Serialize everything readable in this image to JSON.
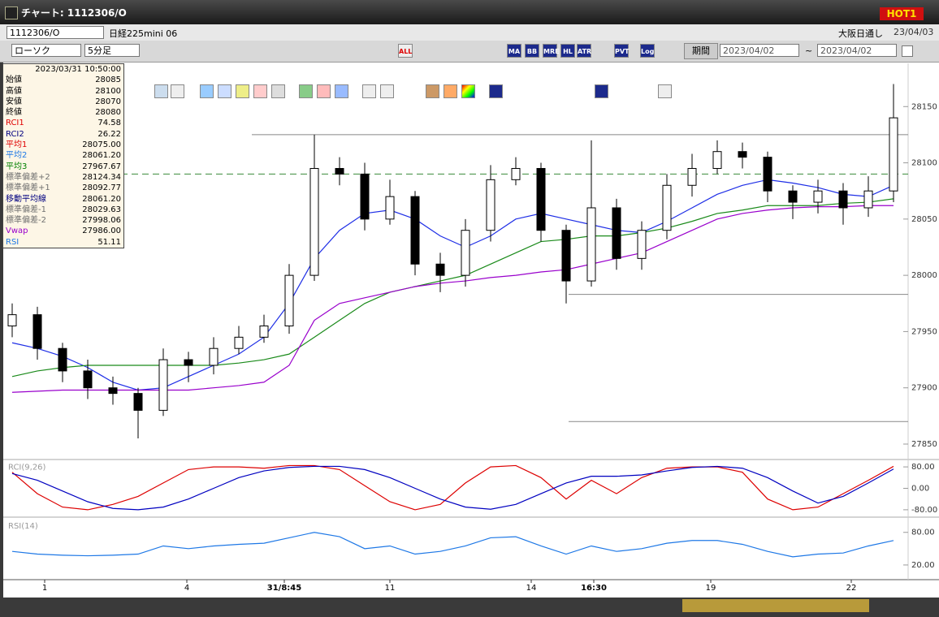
{
  "window": {
    "title": "チャート: 1112306/O",
    "badge": "HOT1"
  },
  "toolbar": {
    "symbol_code": "1112306/O",
    "symbol_name": "日経225mini 06",
    "session": "大阪日通し",
    "date": "23/04/03",
    "chart_style": "ローソク",
    "interval": "5分足",
    "buttons": [
      "ALL",
      "MA",
      "BB",
      "MRE",
      "HL",
      "ATR",
      "PVT",
      "Log"
    ],
    "period_label": "期間",
    "from": "2023/04/02",
    "tilde": "~",
    "to": "2023/04/02"
  },
  "info_panel": {
    "timestamp": "2023/03/31  10:50:00",
    "rows": [
      {
        "label": "始値",
        "value": "28085",
        "color": "#000000"
      },
      {
        "label": "高値",
        "value": "28100",
        "color": "#000000"
      },
      {
        "label": "安値",
        "value": "28070",
        "color": "#000000"
      },
      {
        "label": "終値",
        "value": "28080",
        "color": "#000000"
      },
      {
        "label": "RCI1",
        "value": "74.58",
        "color": "#e00000"
      },
      {
        "label": "RCI2",
        "value": "26.22",
        "color": "#000080"
      },
      {
        "label": "平均1",
        "value": "28075.00",
        "color": "#e00000"
      },
      {
        "label": "平均2",
        "value": "28061.20",
        "color": "#1e78e6"
      },
      {
        "label": "平均3",
        "value": "27967.67",
        "color": "#008000"
      },
      {
        "label": "標準偏差+2",
        "value": "28124.34",
        "color": "#707070"
      },
      {
        "label": "標準偏差+1",
        "value": "28092.77",
        "color": "#707070"
      },
      {
        "label": "移動平均線",
        "value": "28061.20",
        "color": "#000080"
      },
      {
        "label": "標準偏差-1",
        "value": "28029.63",
        "color": "#707070"
      },
      {
        "label": "標準偏差-2",
        "value": "27998.06",
        "color": "#707070"
      },
      {
        "label": "Vwap",
        "value": "27986.00",
        "color": "#9900cc"
      },
      {
        "label": "RSI",
        "value": "51.11",
        "color": "#1e78e6"
      }
    ]
  },
  "x_labels": [
    "1",
    "4",
    "31/8:45",
    "11",
    "14",
    "16:30",
    "19",
    "22"
  ],
  "chart_data": [
    {
      "type": "candlestick",
      "open": [
        27955,
        27965,
        27935,
        27915,
        27900,
        27895,
        27880,
        27925,
        27920,
        27935,
        27945,
        27955,
        28000,
        28095,
        28090,
        28050,
        28070,
        28010,
        28000,
        28040,
        28085,
        28095,
        28040,
        27995,
        28060,
        28015,
        28040,
        28080,
        28095,
        28110,
        28105,
        28075,
        28065,
        28075,
        28060,
        28075
      ],
      "high": [
        27975,
        27972,
        27940,
        27925,
        27910,
        27900,
        27935,
        27932,
        27945,
        27955,
        27965,
        28010,
        28125,
        28105,
        28100,
        28085,
        28075,
        28020,
        28050,
        28098,
        28105,
        28100,
        28045,
        28120,
        28068,
        28048,
        28090,
        28108,
        28120,
        28118,
        28110,
        28080,
        28085,
        28082,
        28088,
        28170
      ],
      "low": [
        27945,
        27925,
        27905,
        27890,
        27885,
        27855,
        27875,
        27905,
        27912,
        27930,
        27940,
        27948,
        27995,
        28080,
        28040,
        28045,
        28000,
        27985,
        27990,
        28030,
        28080,
        28030,
        27975,
        27990,
        28005,
        28005,
        28032,
        28070,
        28090,
        28095,
        28065,
        28050,
        28055,
        28045,
        28052,
        28065
      ],
      "close": [
        27965,
        27935,
        27915,
        27900,
        27895,
        27880,
        27925,
        27920,
        27935,
        27945,
        27955,
        28000,
        28095,
        28090,
        28050,
        28070,
        28010,
        28000,
        28040,
        28085,
        28095,
        28040,
        27995,
        28060,
        28015,
        28040,
        28080,
        28095,
        28110,
        28105,
        28075,
        28065,
        28075,
        28060,
        28075,
        28140
      ],
      "series": [
        {
          "color": "#1e2ee6",
          "values": [
            27940,
            27935,
            27928,
            27918,
            27905,
            27898,
            27900,
            27910,
            27920,
            27930,
            27945,
            27975,
            28015,
            28040,
            28055,
            28058,
            28050,
            28035,
            28025,
            28035,
            28050,
            28055,
            28050,
            28045,
            28040,
            28038,
            28048,
            28060,
            28072,
            28080,
            28085,
            28082,
            28078,
            28072,
            28070,
            28080
          ]
        },
        {
          "color": "#1a8a1a",
          "values": [
            27910,
            27915,
            27918,
            27920,
            27920,
            27920,
            27920,
            27920,
            27920,
            27922,
            27925,
            27930,
            27945,
            27960,
            27975,
            27985,
            27990,
            27995,
            28000,
            28010,
            28020,
            28030,
            28032,
            28035,
            28035,
            28038,
            28042,
            28048,
            28055,
            28058,
            28062,
            28062,
            28062,
            28064,
            28065,
            28068
          ]
        },
        {
          "color": "#9900cc",
          "values": [
            27896,
            27897,
            27898,
            27898,
            27898,
            27898,
            27898,
            27898,
            27900,
            27902,
            27905,
            27920,
            27960,
            27975,
            27980,
            27985,
            27990,
            27993,
            27995,
            27998,
            28000,
            28003,
            28005,
            28010,
            28015,
            28020,
            28030,
            28040,
            28050,
            28055,
            28058,
            28060,
            28061,
            28061,
            28062,
            28062
          ]
        }
      ],
      "reference_line": 28090,
      "horizontal_lines": [
        28125,
        27983,
        27870
      ],
      "ylim": [
        27837,
        28187
      ],
      "yticks": [
        27850,
        27900,
        27950,
        28000,
        28050,
        28100,
        28150
      ]
    },
    {
      "type": "line",
      "label": "RCI(9,26)",
      "series": [
        {
          "color": "#dd0000",
          "values": [
            60,
            -20,
            -70,
            -80,
            -60,
            -30,
            20,
            70,
            80,
            80,
            75,
            85,
            85,
            70,
            10,
            -50,
            -80,
            -60,
            20,
            80,
            85,
            40,
            -40,
            30,
            -20,
            40,
            75,
            80,
            80,
            60,
            -40,
            -80,
            -70,
            -20,
            30,
            82
          ]
        },
        {
          "color": "#0000c0",
          "values": [
            55,
            30,
            -10,
            -50,
            -75,
            -80,
            -70,
            -40,
            0,
            40,
            65,
            78,
            82,
            82,
            70,
            40,
            0,
            -40,
            -70,
            -78,
            -60,
            -20,
            20,
            45,
            45,
            50,
            65,
            78,
            82,
            75,
            40,
            -10,
            -55,
            -30,
            20,
            72
          ]
        }
      ],
      "ylim": [
        -100,
        100
      ],
      "yticks": [
        {
          "value": 80,
          "label": "80.00"
        },
        {
          "value": 0,
          "label": "0.00"
        },
        {
          "value": -80,
          "label": "-80.00"
        }
      ]
    },
    {
      "type": "line",
      "label": "RSI(14)",
      "series": [
        {
          "color": "#1e78e6",
          "values": [
            45,
            40,
            38,
            37,
            38,
            40,
            55,
            50,
            55,
            58,
            60,
            70,
            80,
            72,
            50,
            55,
            40,
            45,
            55,
            70,
            72,
            55,
            40,
            55,
            45,
            50,
            60,
            65,
            65,
            58,
            45,
            35,
            40,
            42,
            55,
            65
          ]
        }
      ],
      "ylim": [
        -4,
        102
      ],
      "yticks": [
        {
          "value": 80,
          "label": "80.00"
        },
        {
          "value": 20,
          "label": "20.00"
        }
      ]
    }
  ]
}
